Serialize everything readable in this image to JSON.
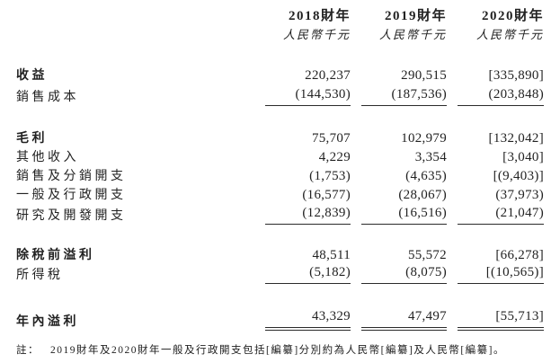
{
  "header": {
    "years": [
      "2018財年",
      "2019財年",
      "2020財年"
    ],
    "units": [
      "人民幣千元",
      "人民幣千元",
      "人民幣千元"
    ]
  },
  "rows": [
    {
      "label": "收益",
      "values": [
        "220,237",
        "290,515",
        "[335,890]"
      ]
    },
    {
      "label": "銷售成本",
      "values": [
        "(144,530)",
        "(187,536)",
        "(203,848)"
      ]
    },
    {
      "label": "毛利",
      "values": [
        "75,707",
        "102,979",
        "[132,042]"
      ]
    },
    {
      "label": "其他收入",
      "values": [
        "4,229",
        "3,354",
        "[3,040]"
      ]
    },
    {
      "label": "銷售及分銷開支",
      "values": [
        "(1,753)",
        "(4,635)",
        "[(9,403)]"
      ]
    },
    {
      "label": "一般及行政開支",
      "values": [
        "(16,577)",
        "(28,067)",
        "(37,973)"
      ]
    },
    {
      "label": "研究及開發開支",
      "values": [
        "(12,839)",
        "(16,516)",
        "(21,047)"
      ]
    },
    {
      "label": "除稅前溢利",
      "values": [
        "48,511",
        "55,572",
        "[66,278]"
      ]
    },
    {
      "label": "所得稅",
      "values": [
        "(5,182)",
        "(8,075)",
        "[(10,565)]"
      ]
    },
    {
      "label": "年內溢利",
      "values": [
        "43,329",
        "47,497",
        "[55,713]"
      ]
    }
  ],
  "note": {
    "label": "註：",
    "text": "2019財年及2020財年一般及行政開支包括[編纂]分別約為人民幣[編纂]及人民幣[編纂]。"
  }
}
